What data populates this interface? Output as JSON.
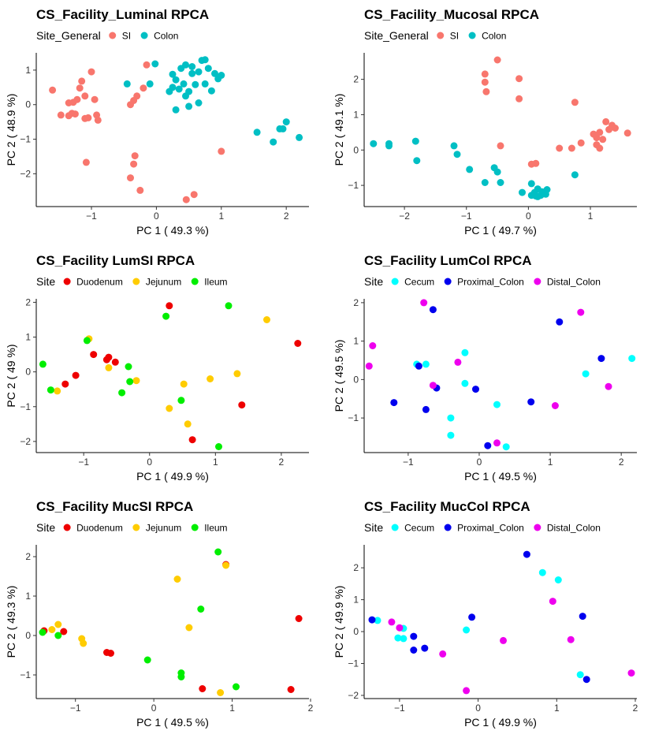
{
  "chart_data": [
    {
      "type": "scatter",
      "title": "CS_Facility_Luminal RPCA",
      "legend_title": "Site_General",
      "legend_position": "top-left",
      "xlabel": "PC 1 ( 49.3 %)",
      "ylabel": "PC 2 ( 48.9 %)",
      "xlim": [
        -1.85,
        2.35
      ],
      "ylim": [
        -2.95,
        1.5
      ],
      "xticks": [
        -1,
        0,
        1,
        2
      ],
      "yticks": [
        -2,
        -1,
        0,
        1
      ],
      "series": [
        {
          "name": "SI",
          "color": "#F8766D",
          "points": [
            [
              -1.6,
              0.42
            ],
            [
              -1.47,
              -0.3
            ],
            [
              -1.35,
              -0.32
            ],
            [
              -1.35,
              0.05
            ],
            [
              -1.3,
              -0.25
            ],
            [
              -1.28,
              0.07
            ],
            [
              -1.25,
              -0.27
            ],
            [
              -1.22,
              0.15
            ],
            [
              -1.18,
              0.48
            ],
            [
              -1.15,
              0.68
            ],
            [
              -1.1,
              -0.4
            ],
            [
              -1.1,
              0.25
            ],
            [
              -1.05,
              -0.38
            ],
            [
              -1.08,
              -1.67
            ],
            [
              -1.0,
              0.95
            ],
            [
              -0.95,
              0.15
            ],
            [
              -0.92,
              -0.3
            ],
            [
              -0.9,
              -0.45
            ],
            [
              -0.3,
              0.25
            ],
            [
              -0.35,
              0.12
            ],
            [
              -0.4,
              0.0
            ],
            [
              -0.15,
              1.15
            ],
            [
              -0.2,
              0.48
            ],
            [
              -0.4,
              -2.12
            ],
            [
              -0.35,
              -1.72
            ],
            [
              -0.33,
              -1.48
            ],
            [
              -0.25,
              -2.48
            ],
            [
              0.46,
              -2.75
            ],
            [
              0.58,
              -2.6
            ],
            [
              1.0,
              -1.35
            ]
          ]
        },
        {
          "name": "Colon",
          "color": "#00BFC4",
          "points": [
            [
              -0.45,
              0.6
            ],
            [
              -0.1,
              0.6
            ],
            [
              -0.02,
              1.18
            ],
            [
              0.2,
              0.38
            ],
            [
              0.25,
              0.5
            ],
            [
              0.25,
              0.88
            ],
            [
              0.3,
              -0.15
            ],
            [
              0.3,
              0.72
            ],
            [
              0.35,
              0.45
            ],
            [
              0.38,
              1.05
            ],
            [
              0.42,
              0.6
            ],
            [
              0.45,
              0.25
            ],
            [
              0.45,
              1.15
            ],
            [
              0.5,
              -0.05
            ],
            [
              0.5,
              0.38
            ],
            [
              0.55,
              1.1
            ],
            [
              0.55,
              0.9
            ],
            [
              0.6,
              0.58
            ],
            [
              0.65,
              0.95
            ],
            [
              0.65,
              0.05
            ],
            [
              0.7,
              1.28
            ],
            [
              0.75,
              1.3
            ],
            [
              0.75,
              0.6
            ],
            [
              0.8,
              1.05
            ],
            [
              0.85,
              0.4
            ],
            [
              0.9,
              0.9
            ],
            [
              0.95,
              0.75
            ],
            [
              1.0,
              0.85
            ],
            [
              1.55,
              -0.8
            ],
            [
              1.8,
              -1.08
            ],
            [
              1.9,
              -0.7
            ],
            [
              1.95,
              -0.7
            ],
            [
              2.0,
              -0.5
            ],
            [
              2.2,
              -0.95
            ]
          ]
        }
      ]
    },
    {
      "type": "scatter",
      "title": "CS_Facility_Mucosal RPCA",
      "legend_title": "Site_General",
      "legend_position": "top-left",
      "xlabel": "PC 1 ( 49.7 %)",
      "ylabel": "PC 2 ( 49.1 %)",
      "xlim": [
        -2.65,
        1.75
      ],
      "ylim": [
        -1.6,
        2.75
      ],
      "xticks": [
        -2,
        -1,
        0,
        1
      ],
      "yticks": [
        -1,
        0,
        1,
        2
      ],
      "series": [
        {
          "name": "SI",
          "color": "#F8766D",
          "points": [
            [
              -0.5,
              2.55
            ],
            [
              -0.7,
              2.15
            ],
            [
              -0.7,
              1.92
            ],
            [
              -0.68,
              1.65
            ],
            [
              -0.15,
              2.02
            ],
            [
              -0.15,
              1.45
            ],
            [
              -0.45,
              0.12
            ],
            [
              0.05,
              -0.4
            ],
            [
              0.12,
              -0.38
            ],
            [
              0.5,
              0.05
            ],
            [
              0.7,
              0.05
            ],
            [
              0.75,
              1.35
            ],
            [
              0.85,
              0.2
            ],
            [
              1.05,
              0.45
            ],
            [
              1.1,
              0.15
            ],
            [
              1.1,
              0.35
            ],
            [
              1.15,
              0.05
            ],
            [
              1.15,
              0.5
            ],
            [
              1.2,
              0.3
            ],
            [
              1.25,
              0.8
            ],
            [
              1.3,
              0.58
            ],
            [
              1.35,
              0.7
            ],
            [
              1.4,
              0.62
            ],
            [
              1.6,
              0.48
            ]
          ]
        },
        {
          "name": "Colon",
          "color": "#00BFC4",
          "points": [
            [
              -2.5,
              0.18
            ],
            [
              -2.25,
              0.18
            ],
            [
              -2.25,
              0.12
            ],
            [
              -1.82,
              0.25
            ],
            [
              -1.8,
              -0.3
            ],
            [
              -1.2,
              0.12
            ],
            [
              -1.15,
              -0.12
            ],
            [
              -0.95,
              -0.55
            ],
            [
              -0.7,
              -0.92
            ],
            [
              -0.55,
              -0.5
            ],
            [
              -0.5,
              -0.62
            ],
            [
              -0.45,
              -0.92
            ],
            [
              -0.1,
              -1.2
            ],
            [
              0.05,
              -0.95
            ],
            [
              0.05,
              -1.28
            ],
            [
              0.1,
              -1.2
            ],
            [
              0.12,
              -1.3
            ],
            [
              0.15,
              -1.32
            ],
            [
              0.15,
              -1.1
            ],
            [
              0.2,
              -1.28
            ],
            [
              0.22,
              -1.18
            ],
            [
              0.28,
              -1.25
            ],
            [
              0.3,
              -1.12
            ],
            [
              0.75,
              -0.7
            ]
          ]
        }
      ]
    },
    {
      "type": "scatter",
      "title": "CS_Facility LumSI RPCA",
      "legend_title": "Site",
      "legend_position": "top-left",
      "xlabel": "PC 1 ( 49.9 %)",
      "ylabel": "PC 2 ( 49 %)",
      "xlim": [
        -1.72,
        2.42
      ],
      "ylim": [
        -2.32,
        2.1
      ],
      "xticks": [
        -1,
        0,
        1,
        2
      ],
      "yticks": [
        -2,
        -1,
        0,
        1,
        2
      ],
      "series": [
        {
          "name": "Duodenum",
          "color": "#EE0000",
          "points": [
            [
              -1.28,
              -0.35
            ],
            [
              -1.12,
              -0.1
            ],
            [
              -0.85,
              0.5
            ],
            [
              -0.65,
              0.35
            ],
            [
              -0.62,
              0.42
            ],
            [
              -0.52,
              0.28
            ],
            [
              0.3,
              1.9
            ],
            [
              0.65,
              -1.95
            ],
            [
              1.4,
              -0.95
            ],
            [
              2.25,
              0.82
            ]
          ]
        },
        {
          "name": "Jejunum",
          "color": "#FFCC00",
          "points": [
            [
              -1.4,
              -0.55
            ],
            [
              -0.92,
              0.95
            ],
            [
              -0.62,
              0.12
            ],
            [
              -0.2,
              -0.25
            ],
            [
              0.3,
              -1.05
            ],
            [
              0.52,
              -0.35
            ],
            [
              0.58,
              -1.5
            ],
            [
              0.92,
              -0.2
            ],
            [
              1.33,
              -0.05
            ],
            [
              1.78,
              1.5
            ]
          ]
        },
        {
          "name": "Ileum",
          "color": "#00EE00",
          "points": [
            [
              -1.62,
              0.22
            ],
            [
              -1.5,
              -0.52
            ],
            [
              -0.95,
              0.9
            ],
            [
              -0.42,
              -0.6
            ],
            [
              -0.32,
              0.15
            ],
            [
              -0.3,
              -0.28
            ],
            [
              0.25,
              1.6
            ],
            [
              0.48,
              -0.82
            ],
            [
              1.05,
              -2.15
            ],
            [
              1.2,
              1.9
            ]
          ]
        }
      ]
    },
    {
      "type": "scatter",
      "title": "CS_Facility LumCol RPCA",
      "legend_title": "Site",
      "legend_position": "top-left",
      "xlabel": "PC 1 ( 49.5 %)",
      "ylabel": "PC 2 ( 49.5 %)",
      "xlim": [
        -1.62,
        2.22
      ],
      "ylim": [
        -1.9,
        2.1
      ],
      "xticks": [
        -1,
        0,
        1,
        2
      ],
      "yticks": [
        -1,
        0,
        1,
        2
      ],
      "series": [
        {
          "name": "Cecum",
          "color": "#00FFFF",
          "points": [
            [
              -0.88,
              0.4
            ],
            [
              -0.75,
              0.4
            ],
            [
              -0.4,
              -1.0
            ],
            [
              -0.4,
              -1.45
            ],
            [
              -0.2,
              0.7
            ],
            [
              -0.2,
              -0.1
            ],
            [
              0.25,
              -0.65
            ],
            [
              0.38,
              -1.75
            ],
            [
              1.5,
              0.15
            ],
            [
              2.15,
              0.55
            ]
          ]
        },
        {
          "name": "Proximal_Colon",
          "color": "#0000EE",
          "points": [
            [
              -1.2,
              -0.6
            ],
            [
              -0.85,
              0.35
            ],
            [
              -0.75,
              -0.78
            ],
            [
              -0.65,
              1.82
            ],
            [
              -0.6,
              -0.22
            ],
            [
              -0.05,
              -0.25
            ],
            [
              0.12,
              -1.72
            ],
            [
              0.73,
              -0.58
            ],
            [
              1.13,
              1.5
            ],
            [
              1.72,
              0.55
            ]
          ]
        },
        {
          "name": "Distal_Colon",
          "color": "#EE00EE",
          "points": [
            [
              -1.55,
              0.35
            ],
            [
              -1.5,
              0.88
            ],
            [
              -0.78,
              2.0
            ],
            [
              -0.3,
              0.45
            ],
            [
              -0.65,
              -0.15
            ],
            [
              0.25,
              -1.65
            ],
            [
              1.07,
              -0.68
            ],
            [
              1.43,
              1.75
            ],
            [
              1.82,
              -0.18
            ]
          ]
        }
      ]
    },
    {
      "type": "scatter",
      "title": "CS_Facility MucSI RPCA",
      "legend_title": "Site",
      "legend_position": "top-left",
      "xlabel": "PC 1 ( 49.5 %)",
      "ylabel": "PC 2 ( 49.3 %)",
      "xlim": [
        -1.5,
        1.98
      ],
      "ylim": [
        -1.6,
        2.3
      ],
      "xticks": [
        -1,
        0,
        1,
        2
      ],
      "yticks": [
        -1,
        0,
        1,
        2
      ],
      "series": [
        {
          "name": "Duodenum",
          "color": "#EE0000",
          "points": [
            [
              -1.4,
              0.12
            ],
            [
              -1.15,
              0.1
            ],
            [
              -0.6,
              -0.43
            ],
            [
              -0.55,
              -0.45
            ],
            [
              0.62,
              -1.35
            ],
            [
              0.92,
              1.8
            ],
            [
              1.75,
              -1.37
            ],
            [
              1.85,
              0.43
            ]
          ]
        },
        {
          "name": "Jejunum",
          "color": "#FFCC00",
          "points": [
            [
              -1.3,
              0.15
            ],
            [
              -1.22,
              0.28
            ],
            [
              -0.92,
              -0.08
            ],
            [
              -0.9,
              -0.2
            ],
            [
              0.3,
              1.43
            ],
            [
              0.45,
              0.2
            ],
            [
              0.85,
              -1.45
            ],
            [
              0.92,
              1.78
            ]
          ]
        },
        {
          "name": "Ileum",
          "color": "#00EE00",
          "points": [
            [
              -1.42,
              0.08
            ],
            [
              -1.22,
              0.0
            ],
            [
              -0.08,
              -0.62
            ],
            [
              0.35,
              -0.95
            ],
            [
              0.35,
              -1.05
            ],
            [
              0.6,
              0.67
            ],
            [
              0.82,
              2.12
            ],
            [
              1.05,
              -1.3
            ]
          ]
        }
      ]
    },
    {
      "type": "scatter",
      "title": "CS_Facility MucCol RPCA",
      "legend_title": "Site",
      "legend_position": "top-left",
      "xlabel": "PC 1 ( 49.9 %)",
      "ylabel": "PC 2 ( 49.9 %)",
      "xlim": [
        -1.45,
        2.02
      ],
      "ylim": [
        -2.1,
        2.72
      ],
      "xticks": [
        -1,
        0,
        1,
        2
      ],
      "yticks": [
        -2,
        -1,
        0,
        1,
        2
      ],
      "series": [
        {
          "name": "Cecum",
          "color": "#00FFFF",
          "points": [
            [
              -1.28,
              0.35
            ],
            [
              -1.02,
              -0.2
            ],
            [
              -0.95,
              -0.22
            ],
            [
              -0.95,
              0.1
            ],
            [
              -0.15,
              0.05
            ],
            [
              0.82,
              1.85
            ],
            [
              1.02,
              1.62
            ],
            [
              1.3,
              -1.35
            ]
          ]
        },
        {
          "name": "Proximal_Colon",
          "color": "#0000EE",
          "points": [
            [
              -1.35,
              0.37
            ],
            [
              -0.82,
              -0.15
            ],
            [
              -0.82,
              -0.58
            ],
            [
              -0.68,
              -0.52
            ],
            [
              -0.08,
              0.45
            ],
            [
              0.62,
              2.42
            ],
            [
              1.33,
              0.48
            ],
            [
              1.38,
              -1.5
            ]
          ]
        },
        {
          "name": "Distal_Colon",
          "color": "#EE00EE",
          "points": [
            [
              -1.1,
              0.3
            ],
            [
              -1.0,
              0.12
            ],
            [
              -0.45,
              -0.7
            ],
            [
              -0.15,
              -1.85
            ],
            [
              0.32,
              -0.28
            ],
            [
              0.95,
              0.95
            ],
            [
              1.18,
              -0.25
            ],
            [
              1.95,
              -1.3
            ]
          ]
        }
      ]
    }
  ]
}
